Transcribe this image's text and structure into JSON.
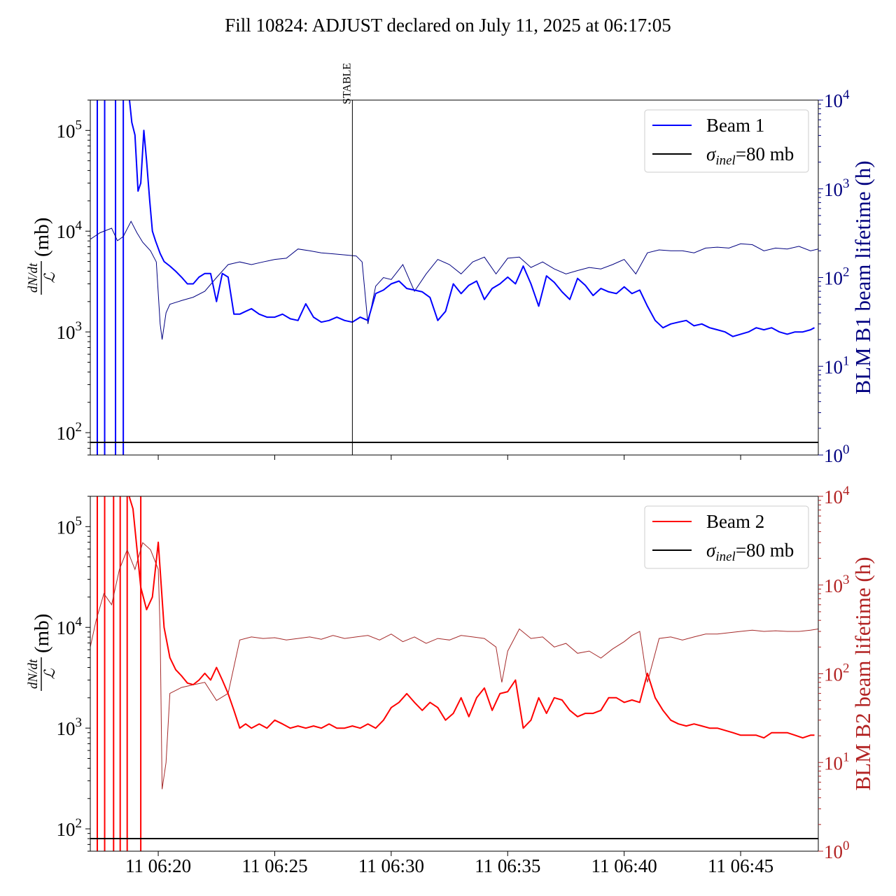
{
  "title": "Fill 10824: ADJUST declared on July 11, 2025 at 06:17:05",
  "colors": {
    "beam1": "#0000ff",
    "beam1_lifetime": "#000080",
    "beam2": "#ff0000",
    "beam2_lifetime": "#a52a2a",
    "reference": "#000000",
    "right_axis_b1": "#000080",
    "right_axis_b2": "#b22222"
  },
  "ylabel_left": {
    "numerator": "dN/dt",
    "denominator": "ℒ",
    "unit": "(mb)"
  },
  "chart_data": [
    {
      "type": "line",
      "panel": "top",
      "x_axis": {
        "type": "time",
        "range": [
          "06:17:05",
          "06:48:20"
        ],
        "ticks": [
          "06:20",
          "06:25",
          "06:30",
          "06:35",
          "06:40",
          "06:45"
        ],
        "tick_labels_shown": false
      },
      "y_left": {
        "scale": "log",
        "range": [
          60,
          200000
        ],
        "ticks": [
          {
            "base": "10",
            "exp": "2",
            "value": 100
          },
          {
            "base": "10",
            "exp": "3",
            "value": 1000
          },
          {
            "base": "10",
            "exp": "4",
            "value": 10000
          },
          {
            "base": "10",
            "exp": "5",
            "value": 100000
          }
        ]
      },
      "y_right": {
        "label": "BLM B1 beam lifetime (h)",
        "scale": "log",
        "range": [
          1,
          10000
        ],
        "ticks": [
          {
            "base": "10",
            "exp": "0",
            "value": 1
          },
          {
            "base": "10",
            "exp": "1",
            "value": 10
          },
          {
            "base": "10",
            "exp": "2",
            "value": 100
          },
          {
            "base": "10",
            "exp": "3",
            "value": 1000
          },
          {
            "base": "10",
            "exp": "4",
            "value": 10000
          }
        ]
      },
      "legend": {
        "position": "top-right",
        "entries": [
          {
            "label": "Beam 1",
            "color": "#0000ff"
          },
          {
            "label_main": "σ",
            "label_sub": "inel",
            "label_rest": "=80 mb",
            "color": "#000000"
          }
        ]
      },
      "marker": {
        "label": "STABLE",
        "time": "06:28:20"
      },
      "reference_value": 80,
      "spike_times": [
        "06:17:23",
        "06:17:42",
        "06:18:10",
        "06:18:30"
      ],
      "series": [
        {
          "name": "Beam 1",
          "axis": "left",
          "x": [
            "06:18:46",
            "06:18:52",
            "06:19:00",
            "06:19:08",
            "06:19:15",
            "06:19:23",
            "06:19:30",
            "06:19:38",
            "06:19:45",
            "06:19:53",
            "06:20:05",
            "06:20:15",
            "06:20:30",
            "06:20:45",
            "06:21:00",
            "06:21:15",
            "06:21:30",
            "06:21:45",
            "06:22:00",
            "06:22:15",
            "06:22:30",
            "06:22:45",
            "06:23:00",
            "06:23:15",
            "06:23:30",
            "06:23:45",
            "06:24:00",
            "06:24:20",
            "06:24:40",
            "06:25:00",
            "06:25:20",
            "06:25:40",
            "06:26:00",
            "06:26:20",
            "06:26:40",
            "06:27:00",
            "06:27:20",
            "06:27:40",
            "06:28:00",
            "06:28:20",
            "06:28:40",
            "06:29:00",
            "06:29:20",
            "06:29:40",
            "06:30:00",
            "06:30:20",
            "06:30:40",
            "06:31:00",
            "06:31:20",
            "06:31:40",
            "06:32:00",
            "06:32:20",
            "06:32:40",
            "06:33:00",
            "06:33:20",
            "06:33:40",
            "06:34:00",
            "06:34:20",
            "06:34:40",
            "06:35:00",
            "06:35:20",
            "06:35:40",
            "06:36:00",
            "06:36:20",
            "06:36:40",
            "06:37:00",
            "06:37:20",
            "06:37:40",
            "06:38:00",
            "06:38:20",
            "06:38:40",
            "06:39:00",
            "06:39:20",
            "06:39:40",
            "06:40:00",
            "06:40:20",
            "06:40:40",
            "06:41:00",
            "06:41:20",
            "06:41:40",
            "06:42:00",
            "06:42:20",
            "06:42:40",
            "06:43:00",
            "06:43:20",
            "06:43:40",
            "06:44:00",
            "06:44:20",
            "06:44:40",
            "06:45:00",
            "06:45:20",
            "06:45:40",
            "06:46:00",
            "06:46:20",
            "06:46:40",
            "06:47:00",
            "06:47:20",
            "06:47:40",
            "06:48:00",
            "06:48:10"
          ],
          "values": [
            200000,
            120000,
            90000,
            25000,
            30000,
            100000,
            50000,
            20000,
            10000,
            8000,
            6000,
            5000,
            4500,
            4000,
            3500,
            3000,
            3000,
            3500,
            3800,
            3800,
            2000,
            3800,
            3500,
            1500,
            1500,
            1600,
            1700,
            1500,
            1400,
            1400,
            1500,
            1350,
            1300,
            1900,
            1400,
            1250,
            1300,
            1400,
            1300,
            1250,
            1400,
            1300,
            2400,
            2600,
            3000,
            3200,
            2700,
            2600,
            2500,
            2200,
            1300,
            1600,
            3000,
            2400,
            2900,
            3200,
            2100,
            2700,
            3000,
            3500,
            3000,
            4500,
            3000,
            1800,
            3600,
            3100,
            2500,
            2100,
            3400,
            2900,
            2300,
            2700,
            2500,
            2400,
            2800,
            2400,
            2600,
            1800,
            1300,
            1100,
            1200,
            1250,
            1300,
            1150,
            1200,
            1100,
            1050,
            1000,
            900,
            950,
            1000,
            1100,
            1050,
            1100,
            1000,
            950,
            1000,
            1000,
            1050,
            1100
          ]
        },
        {
          "name": "Beam 1 BLM lifetime",
          "axis": "right",
          "x": [
            "06:17:05",
            "06:17:30",
            "06:18:00",
            "06:18:15",
            "06:18:30",
            "06:18:50",
            "06:19:05",
            "06:19:20",
            "06:19:40",
            "06:19:55",
            "06:20:05",
            "06:20:10",
            "06:20:20",
            "06:20:30",
            "06:21:00",
            "06:21:30",
            "06:22:00",
            "06:22:30",
            "06:23:00",
            "06:23:30",
            "06:24:00",
            "06:24:30",
            "06:25:00",
            "06:25:30",
            "06:26:00",
            "06:26:30",
            "06:27:00",
            "06:27:30",
            "06:28:00",
            "06:28:30",
            "06:28:45",
            "06:29:00",
            "06:29:20",
            "06:29:40",
            "06:30:00",
            "06:30:30",
            "06:31:00",
            "06:31:30",
            "06:32:00",
            "06:32:30",
            "06:33:00",
            "06:33:30",
            "06:34:00",
            "06:34:30",
            "06:35:00",
            "06:35:30",
            "06:36:00",
            "06:36:30",
            "06:37:00",
            "06:37:30",
            "06:38:00",
            "06:38:30",
            "06:39:00",
            "06:39:30",
            "06:40:00",
            "06:40:30",
            "06:41:00",
            "06:41:30",
            "06:42:00",
            "06:42:30",
            "06:43:00",
            "06:43:30",
            "06:44:00",
            "06:44:30",
            "06:45:00",
            "06:45:30",
            "06:46:00",
            "06:46:30",
            "06:47:00",
            "06:47:30",
            "06:48:00",
            "06:48:20"
          ],
          "values": [
            270,
            320,
            360,
            260,
            290,
            430,
            320,
            250,
            200,
            150,
            30,
            20,
            40,
            50,
            55,
            60,
            70,
            100,
            140,
            150,
            140,
            150,
            160,
            165,
            210,
            200,
            190,
            185,
            180,
            175,
            150,
            30,
            80,
            100,
            95,
            140,
            70,
            110,
            160,
            140,
            110,
            150,
            170,
            110,
            165,
            170,
            130,
            150,
            125,
            110,
            120,
            130,
            125,
            140,
            160,
            110,
            190,
            205,
            200,
            200,
            190,
            215,
            220,
            215,
            240,
            235,
            200,
            215,
            210,
            225,
            200,
            210
          ]
        }
      ]
    },
    {
      "type": "line",
      "panel": "bottom",
      "x_axis": {
        "type": "time",
        "range": [
          "06:17:05",
          "06:48:20"
        ],
        "ticks": [
          "06:20",
          "06:25",
          "06:30",
          "06:35",
          "06:40",
          "06:45"
        ],
        "tick_labels": [
          "11 06:20",
          "11 06:25",
          "11 06:30",
          "11 06:35",
          "11 06:40",
          "11 06:45"
        ]
      },
      "y_left": {
        "scale": "log",
        "range": [
          60,
          200000
        ],
        "ticks": [
          {
            "base": "10",
            "exp": "2",
            "value": 100
          },
          {
            "base": "10",
            "exp": "3",
            "value": 1000
          },
          {
            "base": "10",
            "exp": "4",
            "value": 10000
          },
          {
            "base": "10",
            "exp": "5",
            "value": 100000
          }
        ]
      },
      "y_right": {
        "label": "BLM B2 beam lifetime (h)",
        "scale": "log",
        "range": [
          1,
          10000
        ],
        "ticks": [
          {
            "base": "10",
            "exp": "0",
            "value": 1
          },
          {
            "base": "10",
            "exp": "1",
            "value": 10
          },
          {
            "base": "10",
            "exp": "2",
            "value": 100
          },
          {
            "base": "10",
            "exp": "3",
            "value": 1000
          },
          {
            "base": "10",
            "exp": "4",
            "value": 10000
          }
        ]
      },
      "legend": {
        "position": "top-right",
        "entries": [
          {
            "label": "Beam 2",
            "color": "#ff0000"
          },
          {
            "label_main": "σ",
            "label_sub": "inel",
            "label_rest": "=80 mb",
            "color": "#000000"
          }
        ]
      },
      "reference_value": 80,
      "spike_times": [
        "06:17:23",
        "06:17:42",
        "06:18:05",
        "06:18:22",
        "06:18:40",
        "06:19:15"
      ],
      "series": [
        {
          "name": "Beam 2",
          "axis": "left",
          "x": [
            "06:18:45",
            "06:18:55",
            "06:19:15",
            "06:19:30",
            "06:19:45",
            "06:20:00",
            "06:20:15",
            "06:20:30",
            "06:20:45",
            "06:21:00",
            "06:21:15",
            "06:21:30",
            "06:21:45",
            "06:22:00",
            "06:22:15",
            "06:22:30",
            "06:22:45",
            "06:23:00",
            "06:23:15",
            "06:23:30",
            "06:23:45",
            "06:24:00",
            "06:24:20",
            "06:24:40",
            "06:25:00",
            "06:25:20",
            "06:25:40",
            "06:26:00",
            "06:26:20",
            "06:26:40",
            "06:27:00",
            "06:27:20",
            "06:27:40",
            "06:28:00",
            "06:28:20",
            "06:28:40",
            "06:29:00",
            "06:29:20",
            "06:29:40",
            "06:30:00",
            "06:30:20",
            "06:30:40",
            "06:31:00",
            "06:31:20",
            "06:31:40",
            "06:32:00",
            "06:32:20",
            "06:32:40",
            "06:33:00",
            "06:33:20",
            "06:33:40",
            "06:34:00",
            "06:34:20",
            "06:34:40",
            "06:35:00",
            "06:35:20",
            "06:35:40",
            "06:36:00",
            "06:36:20",
            "06:36:40",
            "06:37:00",
            "06:37:20",
            "06:37:40",
            "06:38:00",
            "06:38:20",
            "06:38:40",
            "06:39:00",
            "06:39:20",
            "06:39:40",
            "06:40:00",
            "06:40:20",
            "06:40:40",
            "06:41:00",
            "06:41:20",
            "06:41:40",
            "06:42:00",
            "06:42:20",
            "06:42:40",
            "06:43:00",
            "06:43:20",
            "06:43:40",
            "06:44:00",
            "06:44:20",
            "06:44:40",
            "06:45:00",
            "06:45:20",
            "06:45:40",
            "06:46:00",
            "06:46:20",
            "06:46:40",
            "06:47:00",
            "06:47:20",
            "06:47:40",
            "06:48:00",
            "06:48:10"
          ],
          "values": [
            200000,
            150000,
            25000,
            15000,
            20000,
            70000,
            10000,
            5000,
            3800,
            3300,
            2800,
            2700,
            3000,
            3500,
            3000,
            4000,
            3000,
            2200,
            1500,
            1000,
            1100,
            1000,
            1100,
            1000,
            1200,
            1100,
            1000,
            1050,
            1000,
            1050,
            1000,
            1100,
            1000,
            1000,
            1050,
            1000,
            1100,
            1000,
            1200,
            1600,
            1800,
            2200,
            1800,
            1500,
            1800,
            1600,
            1200,
            1400,
            2000,
            1300,
            2000,
            2500,
            1500,
            2200,
            2300,
            3000,
            1000,
            1200,
            2000,
            1400,
            2000,
            1900,
            1500,
            1300,
            1400,
            1400,
            1500,
            2000,
            2000,
            1800,
            1900,
            1800,
            3500,
            2000,
            1500,
            1200,
            1100,
            1050,
            1100,
            1050,
            1000,
            1000,
            950,
            900,
            850,
            850,
            850,
            800,
            900,
            900,
            900,
            850,
            800,
            850,
            850
          ]
        },
        {
          "name": "Beam 2 BLM lifetime",
          "axis": "right",
          "x": [
            "06:17:05",
            "06:17:20",
            "06:17:40",
            "06:18:00",
            "06:18:20",
            "06:18:40",
            "06:19:00",
            "06:19:20",
            "06:19:40",
            "06:20:00",
            "06:20:05",
            "06:20:10",
            "06:20:20",
            "06:20:30",
            "06:21:00",
            "06:21:30",
            "06:22:00",
            "06:22:30",
            "06:23:00",
            "06:23:30",
            "06:24:00",
            "06:24:30",
            "06:25:00",
            "06:25:30",
            "06:26:00",
            "06:26:30",
            "06:27:00",
            "06:27:30",
            "06:28:00",
            "06:28:30",
            "06:29:00",
            "06:29:30",
            "06:30:00",
            "06:30:30",
            "06:31:00",
            "06:31:30",
            "06:32:00",
            "06:32:30",
            "06:33:00",
            "06:33:30",
            "06:34:00",
            "06:34:30",
            "06:34:45",
            "06:35:00",
            "06:35:30",
            "06:36:00",
            "06:36:30",
            "06:37:00",
            "06:37:30",
            "06:38:00",
            "06:38:30",
            "06:39:00",
            "06:39:30",
            "06:40:00",
            "06:40:20",
            "06:40:40",
            "06:41:00",
            "06:41:30",
            "06:42:00",
            "06:42:30",
            "06:43:00",
            "06:43:30",
            "06:44:00",
            "06:44:30",
            "06:45:00",
            "06:45:30",
            "06:46:00",
            "06:46:30",
            "06:47:00",
            "06:47:30",
            "06:48:00",
            "06:48:20"
          ],
          "values": [
            200,
            400,
            800,
            600,
            1500,
            2500,
            1500,
            3000,
            2500,
            1500,
            300,
            5,
            10,
            60,
            70,
            75,
            80,
            50,
            60,
            240,
            260,
            250,
            255,
            240,
            250,
            260,
            245,
            270,
            250,
            260,
            270,
            240,
            280,
            230,
            260,
            220,
            250,
            240,
            270,
            260,
            250,
            200,
            80,
            180,
            320,
            250,
            260,
            200,
            220,
            170,
            180,
            150,
            190,
            230,
            270,
            300,
            80,
            250,
            260,
            240,
            260,
            280,
            280,
            290,
            300,
            310,
            300,
            305,
            300,
            300,
            310,
            320
          ]
        }
      ]
    }
  ]
}
